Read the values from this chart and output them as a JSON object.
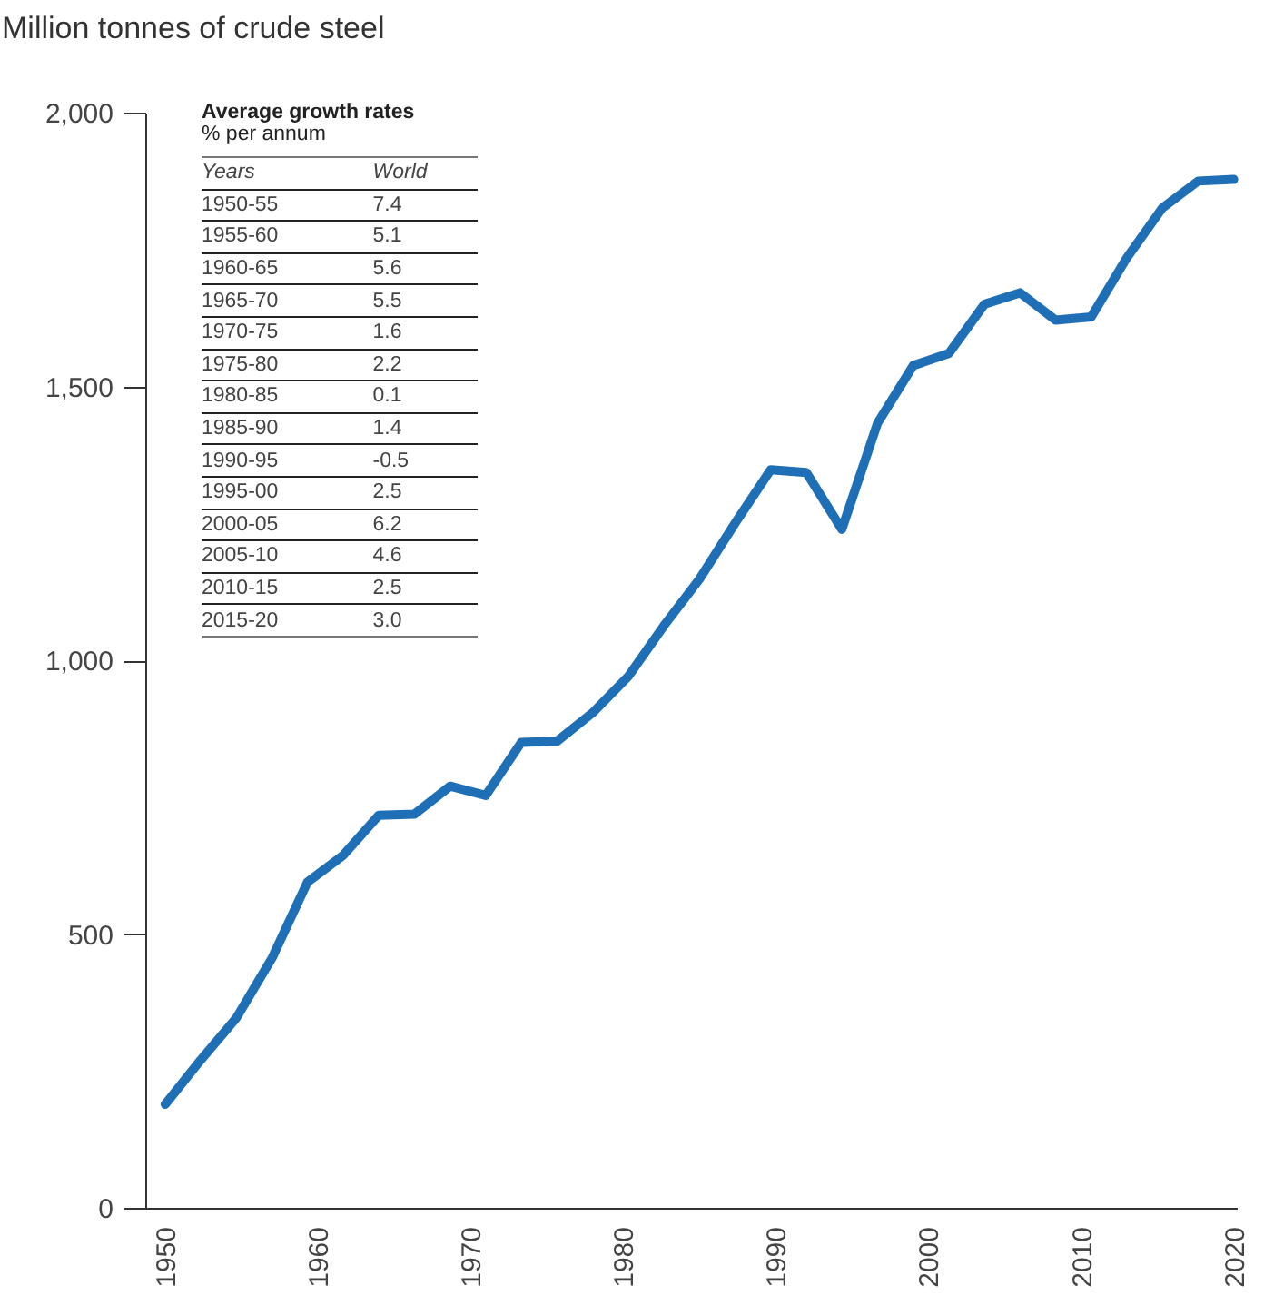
{
  "chart_data": {
    "type": "line",
    "title": "Million tonnes of crude steel",
    "x": [
      1950,
      1952.33,
      1954.67,
      1957,
      1959.33,
      1961.67,
      1964,
      1966.33,
      1968.67,
      1971,
      1973.33,
      1975.67,
      1978,
      1980.33,
      1982.67,
      1985,
      1987.33,
      1989.67,
      1992,
      1994.33,
      1996.67,
      1999,
      2001.33,
      2003.67,
      2006,
      2008.33,
      2010.67,
      2013,
      2015.33,
      2017.67,
      2020
    ],
    "series": [
      {
        "color": "#1f6fb6",
        "values": [
          189,
          270,
          347,
          456,
          595,
          644,
          717,
          719,
          770,
          753,
          850,
          852,
          904,
          970,
          1063,
          1148,
          1250,
          1348,
          1343,
          1239,
          1433,
          1538,
          1560,
          1650,
          1671,
          1621,
          1627,
          1735,
          1826,
          1875,
          1878
        ]
      }
    ],
    "xlim": [
      1948.7,
      2020.2
    ],
    "xticks": [
      1950,
      1960,
      1970,
      1980,
      1990,
      2000,
      2010,
      2020
    ],
    "ylim": [
      0,
      2000
    ],
    "yticks": [
      0,
      500,
      {
        "value": 1000,
        "label": "1,000"
      },
      {
        "value": 1500,
        "label": "1,500"
      },
      {
        "value": 2000,
        "label": "2,000"
      }
    ],
    "grid": false,
    "line_style": "solid",
    "marker": "none",
    "annotations": [
      "Average growth rates",
      "% per annum",
      "Years",
      "World",
      "1950-55",
      "7.4",
      "1955-60",
      "5.1",
      "1960-65",
      "5.6",
      "1965-70",
      "5.5",
      "1970-75",
      "1.6",
      "1975-80",
      "2.2",
      "1980-85",
      "0.1",
      "1985-90",
      "1.4",
      "1990-95",
      "-0.5",
      "1995-00",
      "2.5",
      "2000-05",
      "6.2",
      "2005-10",
      "4.6",
      "2010-15",
      "2.5",
      "2015-20",
      "3.0"
    ]
  }
}
